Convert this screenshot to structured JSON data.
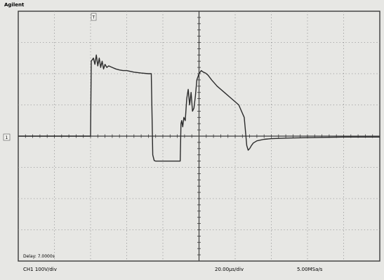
{
  "header": {
    "brand": "Agilent",
    "trigger_marker": "T"
  },
  "ground_marker": "1",
  "readouts": {
    "delay": "Delay: 7.0000s",
    "channel": "CH1 100V/div",
    "timebase": "20.00µs/div",
    "sample_rate": "5.00MSa/s"
  },
  "chart_data": {
    "type": "line",
    "title": "",
    "xlabel": "",
    "ylabel": "",
    "x_unit": "div",
    "y_unit": "div",
    "grid": true,
    "xlim": [
      0,
      10
    ],
    "ylim": [
      -4,
      4
    ],
    "series": [
      {
        "name": "",
        "color": "#2b2b2b",
        "x": [
          0,
          2.0,
          2.02,
          2.08,
          2.12,
          2.16,
          2.2,
          2.24,
          2.28,
          2.32,
          2.36,
          2.4,
          2.45,
          2.5,
          2.6,
          2.7,
          2.8,
          2.9,
          3.0,
          3.2,
          3.4,
          3.6,
          3.68,
          3.72,
          3.76,
          3.8,
          4.0,
          4.2,
          4.48,
          4.5,
          4.52,
          4.55,
          4.58,
          4.62,
          4.66,
          4.7,
          4.74,
          4.78,
          4.82,
          4.86,
          4.9,
          4.94,
          5.0,
          5.06,
          5.12,
          5.18,
          5.25,
          5.35,
          5.5,
          5.7,
          5.9,
          6.1,
          6.25,
          6.32,
          6.36,
          6.4,
          6.45,
          6.5,
          6.6,
          6.8,
          7.0,
          7.5,
          8.0,
          9.0,
          10.0
        ],
        "y": [
          0,
          0,
          2.4,
          2.5,
          2.3,
          2.6,
          2.25,
          2.5,
          2.2,
          2.4,
          2.15,
          2.3,
          2.2,
          2.25,
          2.2,
          2.15,
          2.12,
          2.1,
          2.1,
          2.05,
          2.02,
          2.0,
          2.0,
          -0.6,
          -0.78,
          -0.8,
          -0.8,
          -0.8,
          -0.8,
          0.4,
          0.5,
          0.3,
          0.6,
          0.5,
          1.2,
          1.5,
          1.0,
          1.4,
          0.8,
          0.9,
          1.3,
          1.8,
          2.0,
          2.1,
          2.05,
          2.02,
          1.95,
          1.8,
          1.6,
          1.4,
          1.2,
          1.0,
          0.6,
          -0.3,
          -0.45,
          -0.4,
          -0.3,
          -0.22,
          -0.15,
          -0.1,
          -0.08,
          -0.06,
          -0.05,
          -0.03,
          -0.03
        ]
      }
    ]
  }
}
